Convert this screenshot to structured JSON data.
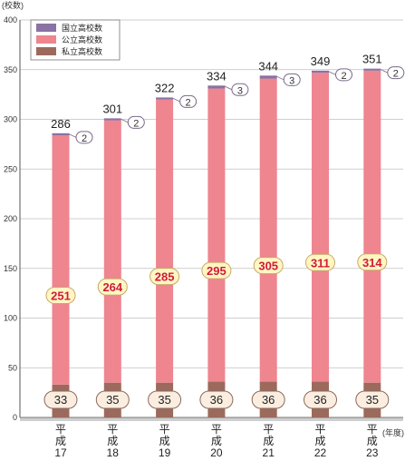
{
  "chart_data": {
    "type": "bar",
    "stacked": true,
    "y_unit": "(校数)",
    "x_unit": "(年度)",
    "ylim": [
      0,
      400
    ],
    "yticks": [
      0,
      50,
      100,
      150,
      200,
      250,
      300,
      350,
      400
    ],
    "categories": [
      [
        "平",
        "成",
        "17"
      ],
      [
        "平",
        "成",
        "18"
      ],
      [
        "平",
        "成",
        "19"
      ],
      [
        "平",
        "成",
        "20"
      ],
      [
        "平",
        "成",
        "21"
      ],
      [
        "平",
        "成",
        "22"
      ],
      [
        "平",
        "成",
        "23"
      ]
    ],
    "series": [
      {
        "name": "私立高校数",
        "color": "#9c6a5c",
        "values": [
          33,
          35,
          35,
          36,
          36,
          36,
          35
        ]
      },
      {
        "name": "公立高校数",
        "color": "#ee858f",
        "values": [
          251,
          264,
          285,
          295,
          305,
          311,
          314
        ]
      },
      {
        "name": "国立高校数",
        "color": "#8a72a4",
        "values": [
          2,
          2,
          2,
          3,
          3,
          2,
          2
        ]
      }
    ],
    "totals": [
      286,
      301,
      322,
      334,
      344,
      349,
      351
    ],
    "legend": {
      "position": "top-left",
      "order": [
        "国立高校数",
        "公立高校数",
        "私立高校数"
      ]
    },
    "grid": true
  }
}
